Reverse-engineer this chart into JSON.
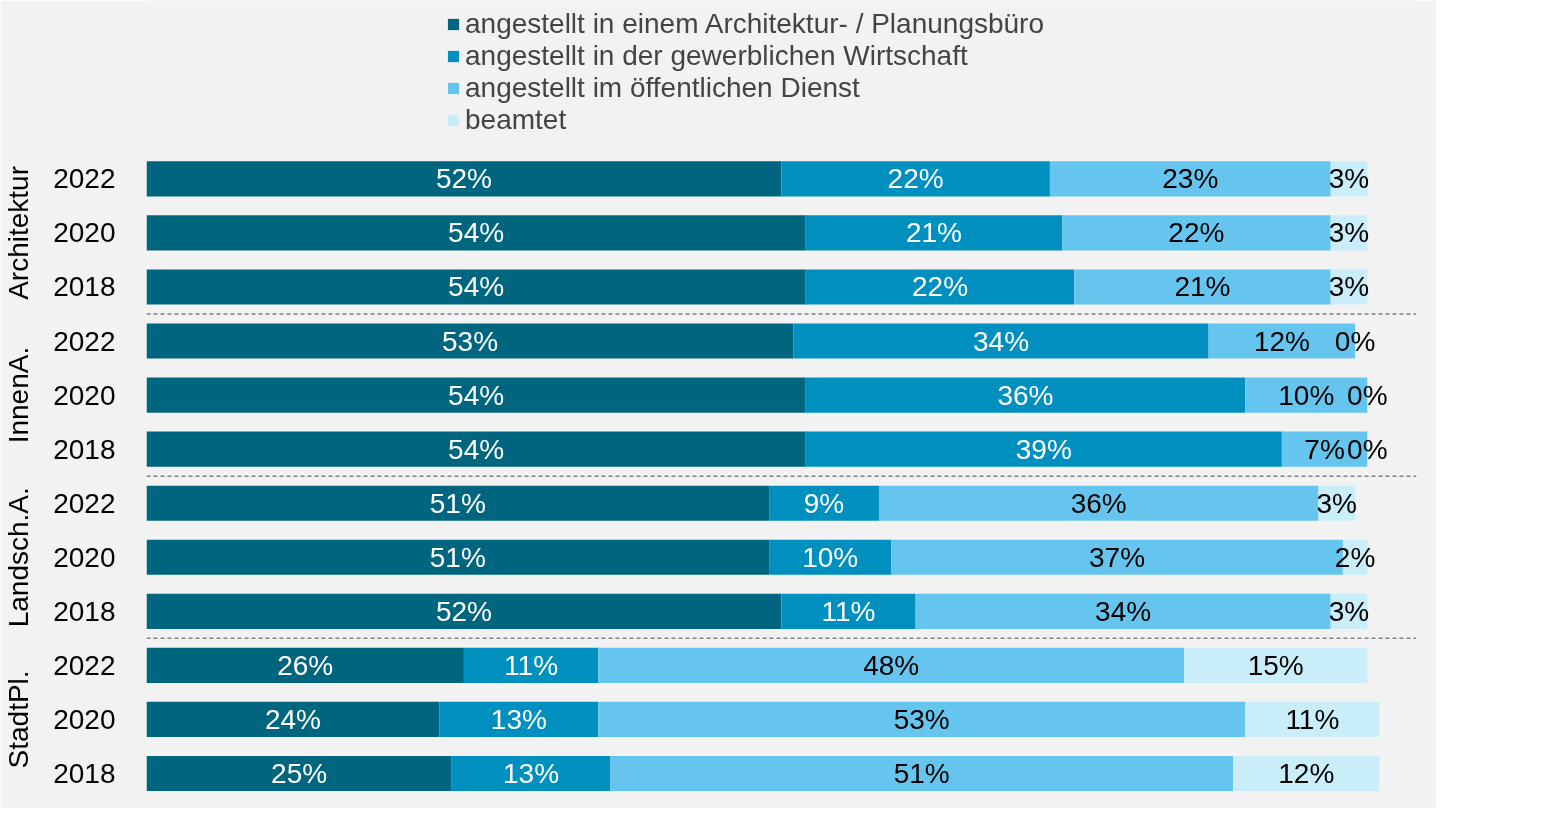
{
  "chart_data": {
    "type": "bar",
    "orientation": "horizontal",
    "stacked": true,
    "legend": "top",
    "grid": false,
    "categories": [
      "2022",
      "2020",
      "2018",
      "2022",
      "2020",
      "2018",
      "2022",
      "2020",
      "2018",
      "2022",
      "2020",
      "2018"
    ],
    "annotations": [
      "Architektur",
      "InnenA.",
      "Landsch.A.",
      "StadtPl."
    ],
    "series": [
      {
        "name": "angestellt in einem Architektur- / Planungsbüro",
        "color": "#006680",
        "values": [
          52,
          54,
          54,
          53,
          54,
          54,
          51,
          51,
          52,
          26,
          24,
          25
        ],
        "value_labels": [
          "52%",
          "54%",
          "54%",
          "53%",
          "54%",
          "54%",
          "51%",
          "51%",
          "52%",
          "26%",
          "24%",
          "25%"
        ]
      },
      {
        "name": "angestellt in der gewerblichen Wirtschaft",
        "color": "#0090bf",
        "values": [
          22,
          21,
          22,
          34,
          36,
          39,
          9,
          10,
          11,
          11,
          13,
          13
        ],
        "value_labels": [
          "22%",
          "21%",
          "22%",
          "34%",
          "36%",
          "39%",
          "9%",
          "10%",
          "11%",
          "11%",
          "13%",
          "13%"
        ]
      },
      {
        "name": "angestellt im öffentlichen Dienst",
        "color": "#66c5ee",
        "values": [
          23,
          22,
          21,
          12,
          10,
          7,
          36,
          37,
          34,
          48,
          53,
          51
        ],
        "value_labels": [
          "23%",
          "22%",
          "21%",
          "12%",
          "10%",
          "7%",
          "36%",
          "37%",
          "34%",
          "48%",
          "53%",
          "51%"
        ]
      },
      {
        "name": "beamtet",
        "color": "#c9eef9",
        "values": [
          3,
          3,
          3,
          0,
          0,
          0,
          3,
          2,
          3,
          15,
          11,
          12
        ],
        "value_labels": [
          "3%",
          "3%",
          "3%",
          "0%",
          "0%",
          "0%",
          "3%",
          "2%",
          "3%",
          "15%",
          "11%",
          "12%"
        ]
      }
    ]
  }
}
